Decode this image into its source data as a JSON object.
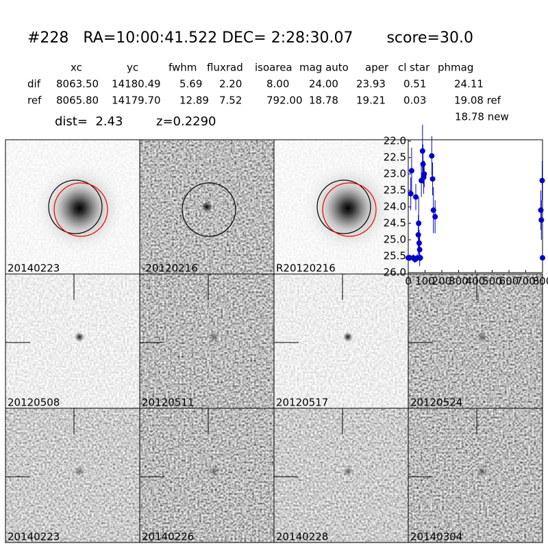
{
  "header": {
    "title": "#228   RA=10:00:41.522 DEC= 2:28:30.07       score=30.0"
  },
  "table": {
    "columns": [
      "xc",
      "yc",
      "fwhm",
      "fluxrad",
      "isoarea",
      "mag auto",
      "aper",
      "cl star",
      "phmag"
    ],
    "rows": [
      [
        "dif",
        "8063.50",
        "14180.49",
        "5.69",
        "2.20",
        "8.00",
        "24.00",
        "23.93",
        "0.51",
        "24.11"
      ],
      [
        "ref",
        "8065.80",
        "14179.70",
        "12.89",
        "7.52",
        "792.00",
        "18.78",
        "19.21",
        "0.03",
        "19.08 ref"
      ]
    ],
    "note": "18.78 new"
  },
  "dist": "dist=  2.43",
  "redshift": "z=0.2290",
  "panels": [
    {
      "label": "20140223",
      "label_color": "#000000"
    },
    {
      "label": "-20120216",
      "label_color": "#000000"
    },
    {
      "label": "R20120216",
      "label_color": "#000000"
    },
    {
      "label": "20120508",
      "label_color": "#000000"
    },
    {
      "label": "20120511",
      "label_color": "#000000"
    },
    {
      "label": "20120517",
      "label_color": "#000000"
    },
    {
      "label": "20120524",
      "label_color": "#000000"
    },
    {
      "label": "20140223",
      "label_color": "#ff0000"
    },
    {
      "label": "20140226",
      "label_color": "#000000"
    },
    {
      "label": "20140228",
      "label_color": "#000000"
    },
    {
      "label": "20140304",
      "label_color": "#000000"
    }
  ],
  "chart_data": {
    "type": "scatter",
    "color": "#0000cc",
    "x": [
      0,
      8,
      15,
      20,
      30,
      40,
      45,
      55,
      60,
      62,
      65,
      68,
      72,
      78,
      85,
      88,
      92,
      95,
      140,
      145,
      150,
      160,
      790,
      793,
      798,
      800
    ],
    "values": [
      25.55,
      25.55,
      23.6,
      22.9,
      25.55,
      25.6,
      23.7,
      25.55,
      24.85,
      24.5,
      25.1,
      25.3,
      25.55,
      23.2,
      22.3,
      22.7,
      23.1,
      23.0,
      22.45,
      23.15,
      24.1,
      24.3,
      24.1,
      24.4,
      23.2,
      25.55
    ],
    "errors": [
      0.1,
      0.1,
      0.5,
      0.7,
      0.1,
      0.1,
      0.4,
      0.1,
      0.6,
      0.8,
      0.4,
      0.5,
      0.1,
      0.5,
      0.8,
      0.6,
      0.5,
      0.4,
      0.6,
      0.5,
      0.7,
      0.5,
      0.6,
      0.6,
      0.6,
      0.1
    ],
    "xlim": [
      0,
      800
    ],
    "xticks": [
      0,
      100,
      200,
      300,
      400,
      500,
      600,
      700,
      800
    ],
    "ylim": [
      26,
      22
    ],
    "yticks": [
      {
        "value": 22,
        "label": "22.0"
      },
      {
        "value": 22.5,
        "label": "22.5"
      },
      {
        "value": 23,
        "label": "23.0"
      },
      {
        "value": 23.5,
        "label": "23.5"
      },
      {
        "value": 24,
        "label": "24.0"
      },
      {
        "value": 24.5,
        "label": "24.5"
      },
      {
        "value": 25,
        "label": "25.0"
      },
      {
        "value": 25.5,
        "label": "25.5"
      },
      {
        "value": 26,
        "label": "26.0"
      }
    ]
  }
}
